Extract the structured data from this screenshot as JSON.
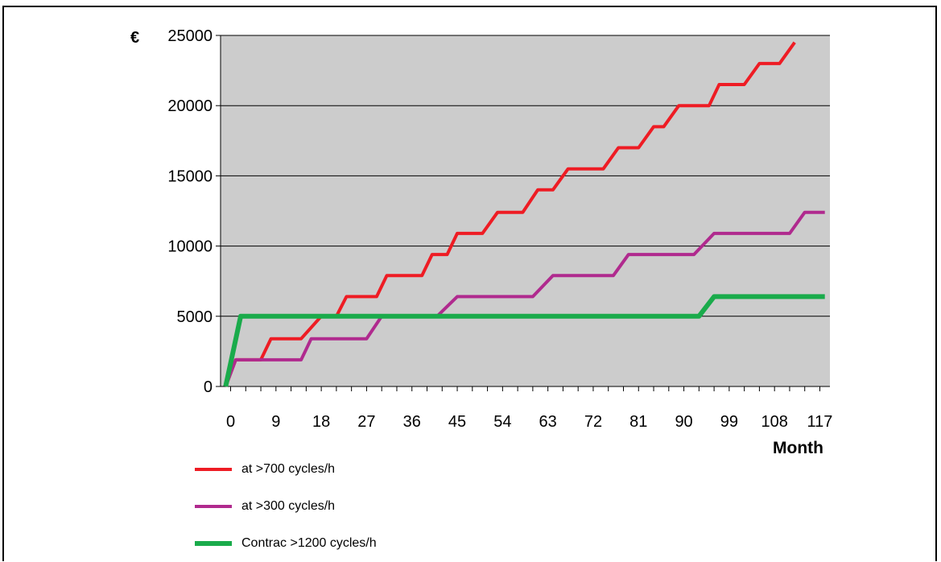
{
  "chart_data": {
    "type": "line",
    "y_unit": "€",
    "xlabel": "Month",
    "ylabel": "",
    "ylim": [
      0,
      25000
    ],
    "xlim": [
      -2,
      119
    ],
    "y_ticks": [
      0,
      5000,
      10000,
      15000,
      20000,
      25000
    ],
    "x_ticks": [
      0,
      9,
      18,
      27,
      36,
      45,
      54,
      63,
      72,
      81,
      90,
      99,
      108,
      117
    ],
    "grid": "horizontal",
    "plot_background": "#cccccc",
    "legend_position": "bottom-left",
    "series": [
      {
        "name": "at >700 cycles/h",
        "color": "#ee1c24",
        "points": [
          [
            -1,
            0
          ],
          [
            1,
            1900
          ],
          [
            6,
            1900
          ],
          [
            8,
            3400
          ],
          [
            14,
            3400
          ],
          [
            18,
            5000
          ],
          [
            21,
            5000
          ],
          [
            23,
            6400
          ],
          [
            29,
            6400
          ],
          [
            31,
            7900
          ],
          [
            38,
            7900
          ],
          [
            40,
            9400
          ],
          [
            43,
            9400
          ],
          [
            45,
            10900
          ],
          [
            50,
            10900
          ],
          [
            53,
            12400
          ],
          [
            58,
            12400
          ],
          [
            61,
            14000
          ],
          [
            64,
            14000
          ],
          [
            67,
            15500
          ],
          [
            74,
            15500
          ],
          [
            77,
            17000
          ],
          [
            81,
            17000
          ],
          [
            84,
            18500
          ],
          [
            86,
            18500
          ],
          [
            89,
            20000
          ],
          [
            95,
            20000
          ],
          [
            97,
            21500
          ],
          [
            102,
            21500
          ],
          [
            105,
            23000
          ],
          [
            109,
            23000
          ],
          [
            112,
            24500
          ]
        ]
      },
      {
        "name": "at >300 cycles/h",
        "color": "#b02a8e",
        "points": [
          [
            -1,
            0
          ],
          [
            1,
            1900
          ],
          [
            14,
            1900
          ],
          [
            16,
            3400
          ],
          [
            27,
            3400
          ],
          [
            30,
            5000
          ],
          [
            41,
            5000
          ],
          [
            45,
            6400
          ],
          [
            60,
            6400
          ],
          [
            64,
            7900
          ],
          [
            76,
            7900
          ],
          [
            79,
            9400
          ],
          [
            92,
            9400
          ],
          [
            96,
            10900
          ],
          [
            111,
            10900
          ],
          [
            114,
            12400
          ],
          [
            118,
            12400
          ]
        ]
      },
      {
        "name": "Contrac >1200 cycles/h",
        "color": "#1aab4b",
        "points": [
          [
            -1,
            0
          ],
          [
            2,
            5000
          ],
          [
            93,
            5000
          ],
          [
            96,
            6400
          ],
          [
            118,
            6400
          ]
        ]
      }
    ]
  },
  "legend": {
    "items": [
      {
        "label": "at >700 cycles/h",
        "color": "#ee1c24"
      },
      {
        "label": "at >300 cycles/h",
        "color": "#b02a8e"
      },
      {
        "label": "Contrac >1200 cycles/h",
        "color": "#1aab4b"
      }
    ]
  }
}
